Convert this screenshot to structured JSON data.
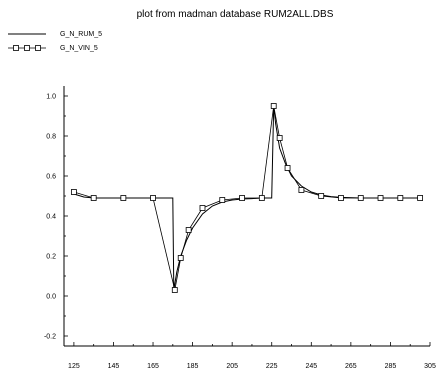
{
  "chart_data": {
    "type": "line",
    "title": "plot from madman database RUM2ALL.DBS",
    "xlabel": "",
    "ylabel": "",
    "xlim": [
      120,
      305
    ],
    "ylim": [
      -0.25,
      1.05
    ],
    "x_ticks": [
      125,
      145,
      165,
      185,
      205,
      225,
      245,
      265,
      285,
      305
    ],
    "y_ticks": [
      -0.2,
      0.0,
      0.2,
      0.4,
      0.6,
      0.8,
      1.0
    ],
    "x_tick_labels": [
      "125",
      "145",
      "165",
      "185",
      "205",
      "225",
      "245",
      "265",
      "285",
      "305"
    ],
    "y_tick_labels": [
      "-0.2",
      "0.0",
      "0.2",
      "0.4",
      "0.6",
      "0.8",
      "1.0"
    ],
    "legend_position": "top-left",
    "grid": false,
    "series": [
      {
        "name": "G_N_RUM_5",
        "style": "solid",
        "x": [
          125,
          130,
          135,
          140,
          145,
          150,
          160,
          170,
          175,
          175.5,
          177,
          179,
          182,
          185,
          190,
          195,
          200,
          205,
          210,
          215,
          220,
          225,
          226,
          227,
          229,
          232,
          235,
          240,
          245,
          250,
          255,
          260,
          270,
          280,
          290,
          300
        ],
        "y": [
          0.51,
          0.495,
          0.49,
          0.49,
          0.49,
          0.49,
          0.49,
          0.49,
          0.49,
          0.03,
          0.12,
          0.2,
          0.28,
          0.34,
          0.41,
          0.45,
          0.47,
          0.48,
          0.485,
          0.487,
          0.49,
          0.49,
          0.95,
          0.86,
          0.74,
          0.66,
          0.6,
          0.55,
          0.52,
          0.505,
          0.497,
          0.493,
          0.49,
          0.49,
          0.49,
          0.49
        ]
      },
      {
        "name": "G_N_VIN_5",
        "style": "square-markers",
        "x": [
          125,
          135,
          150,
          165,
          176,
          179,
          183,
          190,
          200,
          210,
          220,
          226,
          229,
          233,
          240,
          250,
          260,
          270,
          280,
          290,
          300
        ],
        "y": [
          0.52,
          0.49,
          0.49,
          0.49,
          0.03,
          0.19,
          0.33,
          0.44,
          0.48,
          0.49,
          0.49,
          0.95,
          0.79,
          0.64,
          0.53,
          0.5,
          0.49,
          0.49,
          0.49,
          0.49,
          0.49
        ]
      }
    ]
  }
}
